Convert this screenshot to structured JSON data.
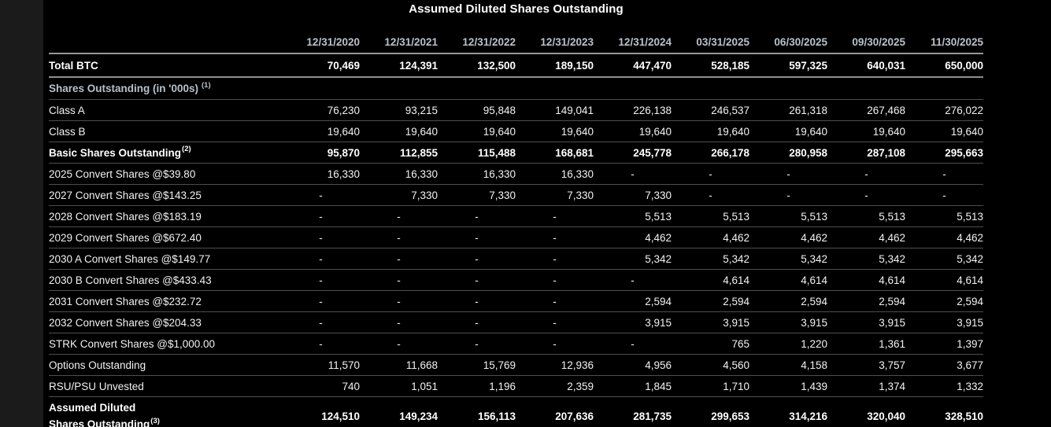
{
  "title": "Assumed Diluted Shares Outstanding",
  "colors": {
    "background": "#000000",
    "page_margin": "#1b1b1b",
    "header_text": "#b9c1c9",
    "body_text": "#f2f2f2",
    "bold_text": "#ffffff",
    "strong_border": "#979797",
    "thin_border": "#4e4e4e"
  },
  "chart_data": {
    "type": "table",
    "title": "Assumed Diluted Shares Outstanding",
    "columns": [
      "12/31/2020",
      "12/31/2021",
      "12/31/2022",
      "12/31/2023",
      "12/31/2024",
      "03/31/2025",
      "06/30/2025",
      "09/30/2025",
      "11/30/2025"
    ],
    "rows": [
      {
        "label": "Total BTC",
        "style": "bold",
        "divider": "strong",
        "row_class": "row-totalbtc",
        "values": [
          "70,469",
          "124,391",
          "132,500",
          "189,150",
          "447,470",
          "528,185",
          "597,325",
          "640,031",
          "650,000"
        ]
      },
      {
        "label": "Shares Outstanding (in '000s)",
        "footnote": "(1)",
        "style": "section",
        "values": []
      },
      {
        "label": "Class A",
        "values": [
          "76,230",
          "93,215",
          "95,848",
          "149,041",
          "226,138",
          "246,537",
          "261,318",
          "267,468",
          "276,022"
        ]
      },
      {
        "label": "Class B",
        "values": [
          "19,640",
          "19,640",
          "19,640",
          "19,640",
          "19,640",
          "19,640",
          "19,640",
          "19,640",
          "19,640"
        ]
      },
      {
        "label": "Basic Shares Outstanding",
        "footnote": "(2)",
        "style": "bold",
        "values": [
          "95,870",
          "112,855",
          "115,488",
          "168,681",
          "245,778",
          "266,178",
          "280,958",
          "287,108",
          "295,663"
        ]
      },
      {
        "label": "2025 Convert Shares @$39.80",
        "values": [
          "16,330",
          "16,330",
          "16,330",
          "16,330",
          "-",
          "-",
          "-",
          "-",
          "-"
        ]
      },
      {
        "label": "2027 Convert Shares @$143.25",
        "values": [
          "-",
          "7,330",
          "7,330",
          "7,330",
          "7,330",
          "-",
          "-",
          "-",
          "-"
        ]
      },
      {
        "label": "2028 Convert Shares @$183.19",
        "values": [
          "-",
          "-",
          "-",
          "-",
          "5,513",
          "5,513",
          "5,513",
          "5,513",
          "5,513"
        ]
      },
      {
        "label": "2029 Convert Shares @$672.40",
        "values": [
          "-",
          "-",
          "-",
          "-",
          "4,462",
          "4,462",
          "4,462",
          "4,462",
          "4,462"
        ]
      },
      {
        "label": "2030 A Convert Shares @$149.77",
        "values": [
          "-",
          "-",
          "-",
          "-",
          "5,342",
          "5,342",
          "5,342",
          "5,342",
          "5,342"
        ]
      },
      {
        "label": "2030 B Convert Shares @$433.43",
        "values": [
          "-",
          "-",
          "-",
          "-",
          "-",
          "4,614",
          "4,614",
          "4,614",
          "4,614"
        ]
      },
      {
        "label": "2031 Convert Shares @$232.72",
        "values": [
          "-",
          "-",
          "-",
          "-",
          "2,594",
          "2,594",
          "2,594",
          "2,594",
          "2,594"
        ]
      },
      {
        "label": "2032 Convert Shares @$204.33",
        "values": [
          "-",
          "-",
          "-",
          "-",
          "3,915",
          "3,915",
          "3,915",
          "3,915",
          "3,915"
        ]
      },
      {
        "label": "STRK Convert Shares @$1,000.00",
        "values": [
          "-",
          "-",
          "-",
          "-",
          "-",
          "765",
          "1,220",
          "1,361",
          "1,397"
        ]
      },
      {
        "label": "Options Outstanding",
        "values": [
          "11,570",
          "11,668",
          "15,769",
          "12,936",
          "4,956",
          "4,560",
          "4,158",
          "3,757",
          "3,677"
        ]
      },
      {
        "label": "RSU/PSU Unvested",
        "values": [
          "740",
          "1,051",
          "1,196",
          "2,359",
          "1,845",
          "1,710",
          "1,439",
          "1,374",
          "1,332"
        ]
      },
      {
        "label": "Assumed Diluted\nShares Outstanding",
        "footnote": "(3)",
        "style": "bold",
        "divider": "strong",
        "row_class": "tall",
        "values": [
          "124,510",
          "149,234",
          "156,113",
          "207,636",
          "281,735",
          "299,653",
          "314,216",
          "320,040",
          "328,510"
        ]
      }
    ]
  }
}
